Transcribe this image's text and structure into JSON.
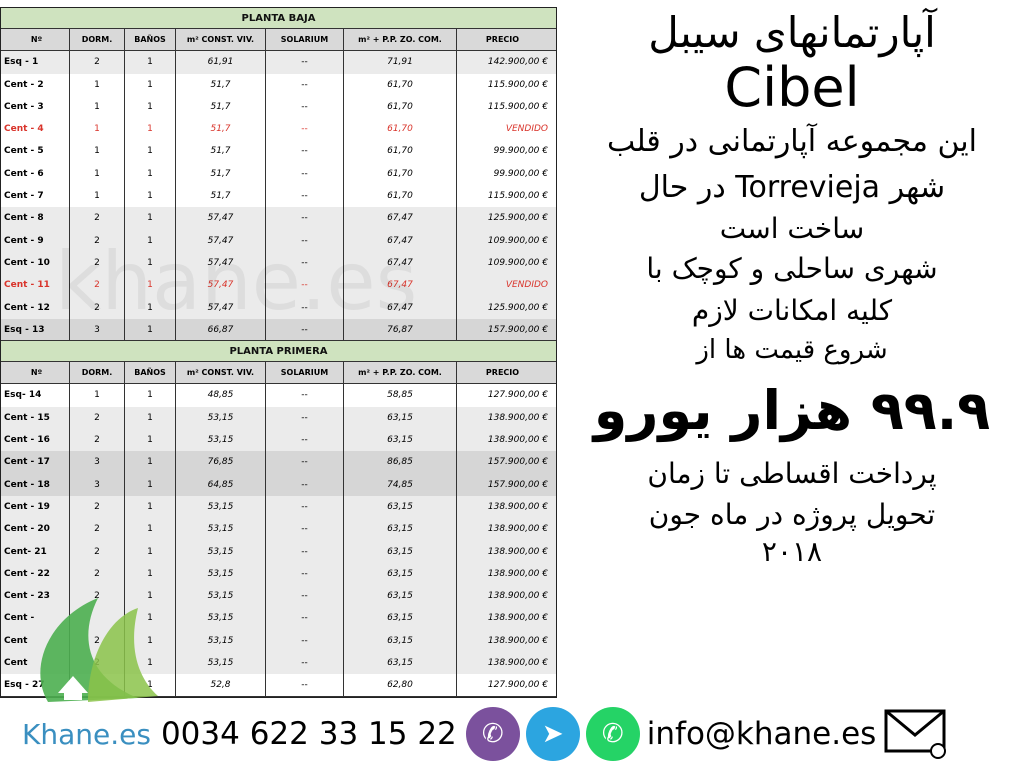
{
  "columns": [
    "Nº",
    "DORM.",
    "BAÑOS",
    "m² CONST. VIV.",
    "SOLARIUM",
    "m² + P.P. ZO. COM.",
    "PRECIO"
  ],
  "sections": [
    {
      "title": "PLANTA BAJA",
      "rows": [
        [
          "Esq - 1",
          "2",
          "1",
          "61,91",
          "--",
          "71,91",
          "142.900,00 €",
          "g"
        ],
        [
          "Cent - 2",
          "1",
          "1",
          "51,7",
          "--",
          "61,70",
          "115.900,00 €",
          "w"
        ],
        [
          "Cent - 3",
          "1",
          "1",
          "51,7",
          "--",
          "61,70",
          "115.900,00 €",
          "w"
        ],
        [
          "Cent - 4",
          "1",
          "1",
          "51,7",
          "--",
          "61,70",
          "VENDIDO",
          "w sold"
        ],
        [
          "Cent - 5",
          "1",
          "1",
          "51,7",
          "--",
          "61,70",
          "99.900,00 €",
          "w"
        ],
        [
          "Cent - 6",
          "1",
          "1",
          "51,7",
          "--",
          "61,70",
          "99.900,00 €",
          "w"
        ],
        [
          "Cent - 7",
          "1",
          "1",
          "51,7",
          "--",
          "61,70",
          "115.900,00 €",
          "w"
        ],
        [
          "Cent - 8",
          "2",
          "1",
          "57,47",
          "--",
          "67,47",
          "125.900,00 €",
          "g"
        ],
        [
          "Cent - 9",
          "2",
          "1",
          "57,47",
          "--",
          "67,47",
          "109.900,00 €",
          "g"
        ],
        [
          "Cent - 10",
          "2",
          "1",
          "57,47",
          "--",
          "67,47",
          "109.900,00 €",
          "g"
        ],
        [
          "Cent - 11",
          "2",
          "1",
          "57,47",
          "--",
          "67,47",
          "VENDIDO",
          "g sold"
        ],
        [
          "Cent - 12",
          "2",
          "1",
          "57,47",
          "--",
          "67,47",
          "125.900,00 €",
          "g"
        ],
        [
          "Esq - 13",
          "3",
          "1",
          "66,87",
          "--",
          "76,87",
          "157.900,00 €",
          "d"
        ]
      ]
    },
    {
      "title": "PLANTA PRIMERA",
      "rows": [
        [
          "Esq- 14",
          "1",
          "1",
          "48,85",
          "--",
          "58,85",
          "127.900,00 €",
          "w"
        ],
        [
          "Cent - 15",
          "2",
          "1",
          "53,15",
          "--",
          "63,15",
          "138.900,00 €",
          "g"
        ],
        [
          "Cent - 16",
          "2",
          "1",
          "53,15",
          "--",
          "63,15",
          "138.900,00 €",
          "g"
        ],
        [
          "Cent - 17",
          "3",
          "1",
          "76,85",
          "--",
          "86,85",
          "157.900,00 €",
          "d"
        ],
        [
          "Cent - 18",
          "3",
          "1",
          "64,85",
          "--",
          "74,85",
          "157.900,00 €",
          "d"
        ],
        [
          "Cent - 19",
          "2",
          "1",
          "53,15",
          "--",
          "63,15",
          "138.900,00 €",
          "g"
        ],
        [
          "Cent - 20",
          "2",
          "1",
          "53,15",
          "--",
          "63,15",
          "138.900,00 €",
          "g"
        ],
        [
          "Cent- 21",
          "2",
          "1",
          "53,15",
          "--",
          "63,15",
          "138.900,00 €",
          "g"
        ],
        [
          "Cent - 22",
          "2",
          "1",
          "53,15",
          "--",
          "63,15",
          "138.900,00 €",
          "g"
        ],
        [
          "Cent - 23",
          "2",
          "1",
          "53,15",
          "--",
          "63,15",
          "138.900,00 €",
          "g"
        ],
        [
          "Cent - ",
          "",
          "1",
          "53,15",
          "--",
          "63,15",
          "138.900,00 €",
          "g"
        ],
        [
          "Cent",
          "2",
          "1",
          "53,15",
          "--",
          "63,15",
          "138.900,00 €",
          "g"
        ],
        [
          "Cent",
          "2",
          "1",
          "53,15",
          "--",
          "63,15",
          "138.900,00 €",
          "g"
        ],
        [
          "Esq - 27",
          "",
          "1",
          "52,8",
          "--",
          "62,80",
          "127.900,00 €",
          "w"
        ]
      ]
    }
  ],
  "watermark": "khane.es",
  "promo": {
    "title": "آپارتمانهای سیبل",
    "name": "Cibel",
    "line1": "این مجموعه آپارتمانی در قلب",
    "line2": "شهر Torrevieja در حال",
    "line3": "ساخت است",
    "line4": "شهری ساحلی و کوچک با",
    "line5": "کلیه امکانات لازم",
    "line6": "شروع قیمت ها از",
    "price": "۹۹.۹ هزار یورو",
    "line7": "پرداخت اقساطی تا زمان",
    "line8": "تحویل پروژه در ماه جون",
    "year": "۲۰۱۸"
  },
  "footer": {
    "brand": "Khane.es",
    "phone": "0034 622 33 15 22",
    "email": "info@khane.es"
  },
  "colors": {
    "banner": "#cfe3bf",
    "sold": "#d9342b",
    "viber": "#7b519d",
    "telegram": "#2ca5e0",
    "whatsapp": "#25d366",
    "brand": "#3a8fc0"
  }
}
